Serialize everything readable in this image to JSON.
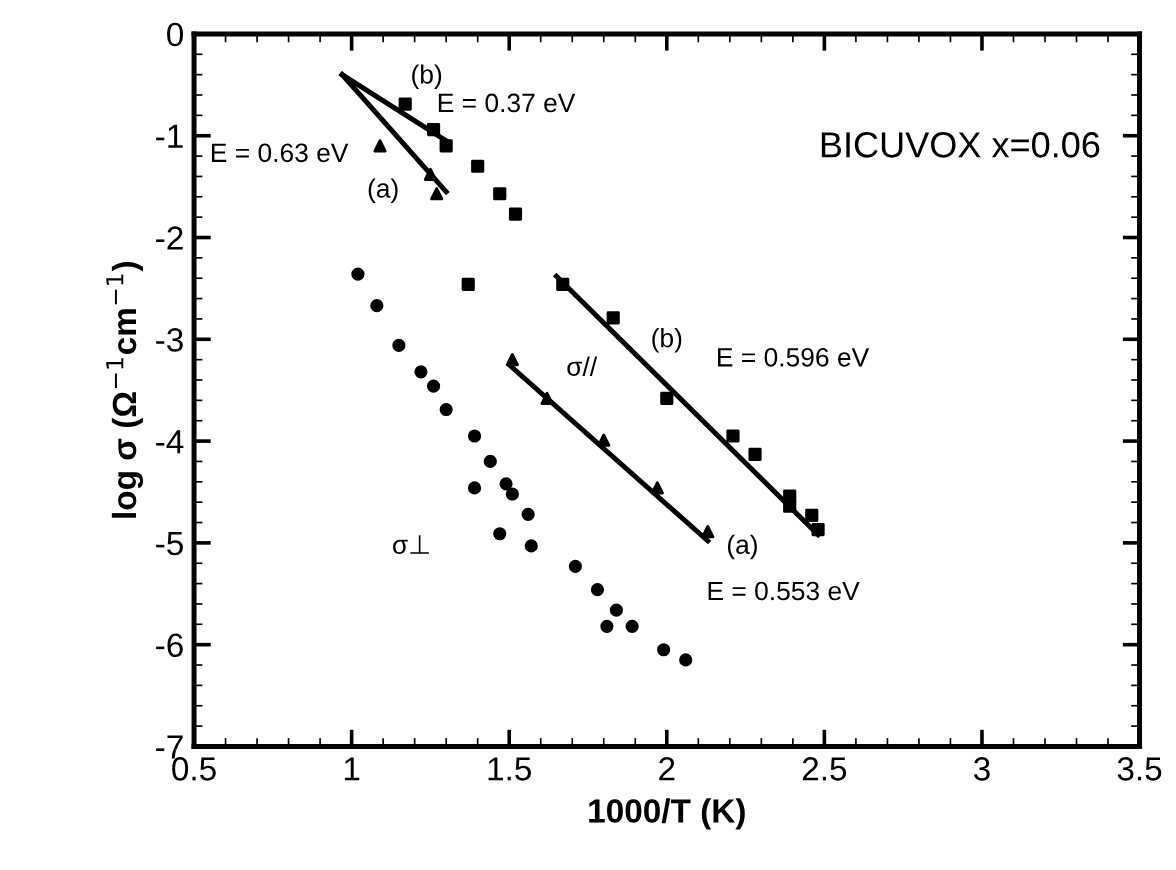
{
  "chart_data": {
    "type": "scatter",
    "xlabel": "1000/T (K)",
    "ylabel": "log σ (Ω$^{−1}$cm$^{−1}$)",
    "xlim": [
      0.5,
      3.5
    ],
    "xticks": [
      0.5,
      1,
      1.5,
      2,
      2.5,
      3,
      3.5
    ],
    "ylim": [
      -7,
      0
    ],
    "yticks": [
      -7,
      -6,
      -5,
      -4,
      -3,
      -2,
      -1,
      0
    ],
    "grid": false,
    "legend": false,
    "series": [
      {
        "marker": "circle",
        "color": "#000000",
        "x": [
          1.02,
          1.08,
          1.15,
          1.22,
          1.26,
          1.3,
          1.39,
          1.44,
          1.49,
          1.51,
          1.39,
          1.56,
          1.47,
          1.57,
          1.71,
          1.78,
          1.84,
          1.81,
          1.89,
          1.99,
          2.06
        ],
        "values": [
          -2.36,
          -2.67,
          -3.06,
          -3.32,
          -3.46,
          -3.69,
          -3.95,
          -4.2,
          -4.42,
          -4.52,
          -4.46,
          -4.72,
          -4.91,
          -5.03,
          -5.23,
          -5.46,
          -5.66,
          -5.82,
          -5.82,
          -6.05,
          -6.15
        ]
      },
      {
        "marker": "triangle",
        "color": "#000000",
        "x": [
          1.09,
          1.25,
          1.27,
          1.51,
          1.62,
          1.8,
          1.97,
          2.13
        ],
        "values": [
          -1.1,
          -1.38,
          -1.57,
          -3.2,
          -3.58,
          -3.99,
          -4.46,
          -4.89
        ]
      },
      {
        "marker": "square",
        "color": "#000000",
        "x": [
          1.17,
          1.26,
          1.3,
          1.4,
          1.47,
          1.52,
          1.37,
          1.67,
          1.83,
          2.0,
          2.21,
          2.28,
          2.39,
          2.39,
          2.46,
          2.48
        ],
        "values": [
          -0.69,
          -0.94,
          -1.1,
          -1.3,
          -1.57,
          -1.77,
          -2.46,
          -2.46,
          -2.79,
          -3.58,
          -3.95,
          -4.13,
          -4.54,
          -4.64,
          -4.73,
          -4.87
        ]
      },
      {
        "type": "line",
        "color": "#000000",
        "x": [
          0.97,
          1.3
        ],
        "values": [
          -0.4,
          -1.55
        ]
      },
      {
        "type": "line",
        "color": "#000000",
        "x": [
          0.97,
          1.3
        ],
        "values": [
          -0.4,
          -1.05
        ]
      },
      {
        "type": "line",
        "color": "#000000",
        "x": [
          1.65,
          2.48
        ],
        "values": [
          -2.38,
          -4.92
        ]
      },
      {
        "type": "line",
        "color": "#000000",
        "x": [
          1.5,
          2.13
        ],
        "values": [
          -3.25,
          -4.98
        ]
      }
    ],
    "annotations": [
      "(b)",
      "E = 0.37 eV",
      "E = 0.63 eV",
      "(a)",
      "BICUVOX x=0.06",
      "(b)",
      "E = 0.596 eV",
      "σ//",
      "σ⊥",
      "(a)",
      "E = 0.553 eV"
    ]
  }
}
